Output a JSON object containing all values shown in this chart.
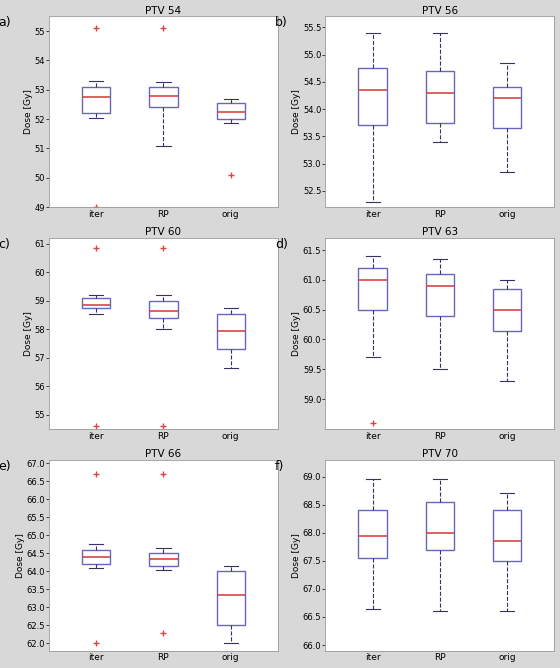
{
  "subplots": [
    {
      "label": "a)",
      "title": "PTV 54",
      "ylabel": "Dose [Gy]",
      "ylim": [
        49,
        55.5
      ],
      "yticks": [
        49,
        50,
        51,
        52,
        53,
        54,
        55
      ],
      "groups": [
        "iter",
        "RP",
        "orig"
      ],
      "boxes": [
        {
          "q1": 52.2,
          "median": 52.75,
          "q3": 53.1,
          "whislo": 52.05,
          "whishi": 53.3,
          "fliers_high": [
            55.1
          ],
          "fliers_low": [
            49.0
          ]
        },
        {
          "q1": 52.4,
          "median": 52.8,
          "q3": 53.1,
          "whislo": 51.1,
          "whishi": 53.25,
          "fliers_high": [
            55.1
          ],
          "fliers_low": []
        },
        {
          "q1": 52.0,
          "median": 52.25,
          "q3": 52.55,
          "whislo": 51.88,
          "whishi": 52.7,
          "fliers_high": [],
          "fliers_low": [
            50.1
          ]
        }
      ]
    },
    {
      "label": "b)",
      "title": "PTV 56",
      "ylabel": "Dose [Gy]",
      "ylim": [
        52.2,
        55.7
      ],
      "yticks": [
        52.5,
        53.0,
        53.5,
        54.0,
        54.5,
        55.0,
        55.5
      ],
      "groups": [
        "iter",
        "RP",
        "orig"
      ],
      "boxes": [
        {
          "q1": 53.7,
          "median": 54.35,
          "q3": 54.75,
          "whislo": 52.3,
          "whishi": 55.4,
          "fliers_high": [],
          "fliers_low": []
        },
        {
          "q1": 53.75,
          "median": 54.3,
          "q3": 54.7,
          "whislo": 53.4,
          "whishi": 55.4,
          "fliers_high": [],
          "fliers_low": []
        },
        {
          "q1": 53.65,
          "median": 54.2,
          "q3": 54.4,
          "whislo": 52.85,
          "whishi": 54.85,
          "fliers_high": [],
          "fliers_low": []
        }
      ]
    },
    {
      "label": "c)",
      "title": "PTV 60",
      "ylabel": "Dose [Gy]",
      "ylim": [
        54.5,
        61.2
      ],
      "yticks": [
        55,
        56,
        57,
        58,
        59,
        60,
        61
      ],
      "groups": [
        "iter",
        "RP",
        "orig"
      ],
      "boxes": [
        {
          "q1": 58.75,
          "median": 58.85,
          "q3": 59.1,
          "whislo": 58.55,
          "whishi": 59.2,
          "fliers_high": [
            60.85
          ],
          "fliers_low": [
            54.6
          ]
        },
        {
          "q1": 58.4,
          "median": 58.65,
          "q3": 59.0,
          "whislo": 58.0,
          "whishi": 59.2,
          "fliers_high": [
            60.85
          ],
          "fliers_low": [
            54.6
          ]
        },
        {
          "q1": 57.3,
          "median": 57.95,
          "q3": 58.55,
          "whislo": 56.65,
          "whishi": 58.75,
          "fliers_high": [],
          "fliers_low": []
        }
      ]
    },
    {
      "label": "d)",
      "title": "PTV 63",
      "ylabel": "Dose [Gy]",
      "ylim": [
        58.5,
        61.7
      ],
      "yticks": [
        59.0,
        59.5,
        60.0,
        60.5,
        61.0,
        61.5
      ],
      "groups": [
        "iter",
        "RP",
        "orig"
      ],
      "boxes": [
        {
          "q1": 60.5,
          "median": 61.0,
          "q3": 61.2,
          "whislo": 59.7,
          "whishi": 61.4,
          "fliers_high": [],
          "fliers_low": [
            58.6
          ]
        },
        {
          "q1": 60.4,
          "median": 60.9,
          "q3": 61.1,
          "whislo": 59.5,
          "whishi": 61.35,
          "fliers_high": [],
          "fliers_low": []
        },
        {
          "q1": 60.15,
          "median": 60.5,
          "q3": 60.85,
          "whislo": 59.3,
          "whishi": 61.0,
          "fliers_high": [],
          "fliers_low": []
        }
      ]
    },
    {
      "label": "e)",
      "title": "PTV 66",
      "ylabel": "Dose [Gy]",
      "ylim": [
        61.8,
        67.1
      ],
      "yticks": [
        62.0,
        62.5,
        63.0,
        63.5,
        64.0,
        64.5,
        65.0,
        65.5,
        66.0,
        66.5,
        67.0
      ],
      "groups": [
        "iter",
        "RP",
        "orig"
      ],
      "boxes": [
        {
          "q1": 64.2,
          "median": 64.4,
          "q3": 64.6,
          "whislo": 64.1,
          "whishi": 64.75,
          "fliers_high": [
            66.7
          ],
          "fliers_low": [
            62.0
          ]
        },
        {
          "q1": 64.15,
          "median": 64.35,
          "q3": 64.5,
          "whislo": 64.05,
          "whishi": 64.65,
          "fliers_high": [
            66.7
          ],
          "fliers_low": [
            62.3
          ]
        },
        {
          "q1": 62.5,
          "median": 63.35,
          "q3": 64.0,
          "whislo": 62.0,
          "whishi": 64.15,
          "fliers_high": [],
          "fliers_low": []
        }
      ]
    },
    {
      "label": "f)",
      "title": "PTV 70",
      "ylabel": "Dose [Gy]",
      "ylim": [
        65.9,
        69.3
      ],
      "yticks": [
        66.0,
        66.5,
        67.0,
        67.5,
        68.0,
        68.5,
        69.0
      ],
      "groups": [
        "iter",
        "RP",
        "orig"
      ],
      "boxes": [
        {
          "q1": 67.55,
          "median": 67.95,
          "q3": 68.4,
          "whislo": 66.65,
          "whishi": 68.95,
          "fliers_high": [],
          "fliers_low": []
        },
        {
          "q1": 67.7,
          "median": 68.0,
          "q3": 68.55,
          "whislo": 66.6,
          "whishi": 68.95,
          "fliers_high": [],
          "fliers_low": []
        },
        {
          "q1": 67.5,
          "median": 67.85,
          "q3": 68.4,
          "whislo": 66.6,
          "whishi": 68.7,
          "fliers_high": [],
          "fliers_low": []
        }
      ]
    }
  ],
  "box_edge_color": "#6666bb",
  "median_color": "#dd4444",
  "flier_color": "#dd4444",
  "whisker_color": "#333366",
  "cap_color": "#333366",
  "box_facecolor": "#ffffff",
  "background_color": "#d8d8d8",
  "axes_bg": "#ffffff"
}
